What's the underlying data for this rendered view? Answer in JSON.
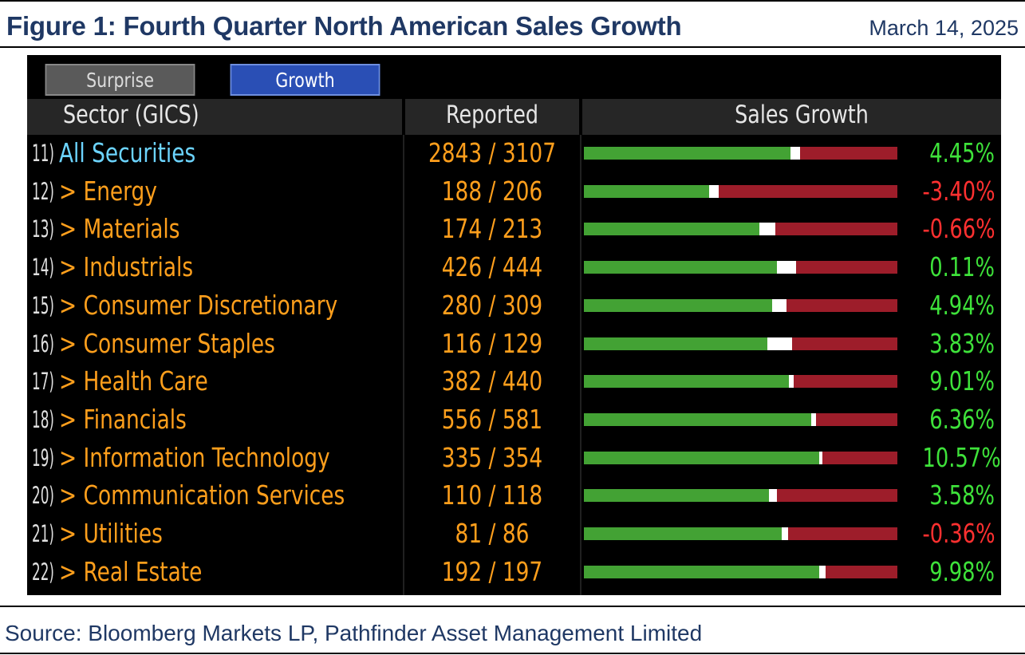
{
  "figure": {
    "title": "Figure 1: Fourth Quarter North American Sales Growth",
    "date": "March 14, 2025",
    "source": "Source: Bloomberg Markets LP, Pathfinder Asset Management Limited"
  },
  "tabs": [
    {
      "label": "Surprise",
      "active": false
    },
    {
      "label": "Growth",
      "active": true
    }
  ],
  "headers": {
    "sector": "Sector (GICS)",
    "reported": "Reported",
    "sales": "Sales Growth"
  },
  "colors": {
    "positive": "#3ee23a",
    "negative": "#ff3030",
    "bar_green": "#43a234",
    "bar_red": "#9d1d2a",
    "label_orange": "#ff9f1c",
    "label_cyan": "#6cd4ff"
  },
  "rows": [
    {
      "num": "11)",
      "name": "All Securities",
      "reported": "2843 / 3107",
      "growth": "4.45%",
      "bar_split": 0.66,
      "bar_mark": 0.03
    },
    {
      "num": "12)",
      "name": "> Energy",
      "reported": "188 / 206",
      "growth": "-3.40%",
      "bar_split": 0.4,
      "bar_mark": 0.03
    },
    {
      "num": "13)",
      "name": "> Materials",
      "reported": "174 / 213",
      "growth": "-0.66%",
      "bar_split": 0.56,
      "bar_mark": 0.05
    },
    {
      "num": "14)",
      "name": "> Industrials",
      "reported": "426 / 444",
      "growth": "0.11%",
      "bar_split": 0.615,
      "bar_mark": 0.06
    },
    {
      "num": "15)",
      "name": "> Consumer Discretionary",
      "reported": "280 / 309",
      "growth": "4.94%",
      "bar_split": 0.6,
      "bar_mark": 0.045
    },
    {
      "num": "16)",
      "name": "> Consumer Staples",
      "reported": "116 / 129",
      "growth": "3.83%",
      "bar_split": 0.585,
      "bar_mark": 0.08
    },
    {
      "num": "17)",
      "name": "> Health Care",
      "reported": "382 / 440",
      "growth": "9.01%",
      "bar_split": 0.655,
      "bar_mark": 0.015
    },
    {
      "num": "18)",
      "name": "> Financials",
      "reported": "556 / 581",
      "growth": "6.36%",
      "bar_split": 0.725,
      "bar_mark": 0.015
    },
    {
      "num": "19)",
      "name": "> Information Technology",
      "reported": "335 / 354",
      "growth": "10.57%",
      "bar_split": 0.75,
      "bar_mark": 0.008
    },
    {
      "num": "20)",
      "name": "> Communication Services",
      "reported": "110 / 118",
      "growth": "3.58%",
      "bar_split": 0.59,
      "bar_mark": 0.025
    },
    {
      "num": "21)",
      "name": "> Utilities",
      "reported": "81 / 86",
      "growth": "-0.36%",
      "bar_split": 0.63,
      "bar_mark": 0.02
    },
    {
      "num": "22)",
      "name": "> Real Estate",
      "reported": "192 / 197",
      "growth": "9.98%",
      "bar_split": 0.75,
      "bar_mark": 0.02
    }
  ]
}
